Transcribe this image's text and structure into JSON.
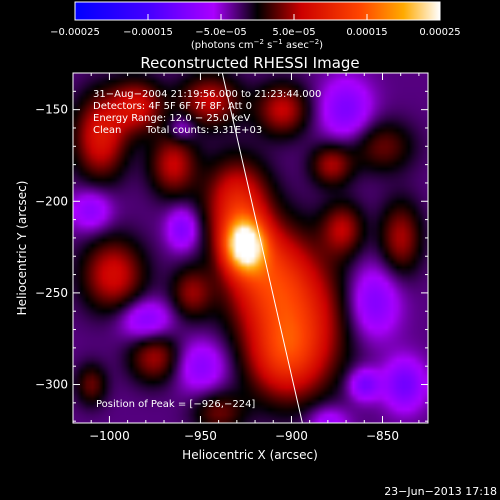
{
  "chart_data": {
    "type": "heatmap",
    "title": "Reconstructed RHESSI Image",
    "xlabel": "Heliocentric X (arcsec)",
    "ylabel": "Heliocentric Y (arcsec)",
    "xlim": [
      -1020,
      -825
    ],
    "ylim": [
      -321,
      -130
    ],
    "x_ticks": [
      -1000,
      -950,
      -900,
      -850
    ],
    "y_ticks": [
      -150,
      -200,
      -250,
      -300
    ],
    "x_tick_labels": [
      "−1000",
      "−950",
      "−900",
      "−850"
    ],
    "y_tick_labels": [
      "−150",
      "−200",
      "−250",
      "−300"
    ],
    "colorbar": {
      "range": [
        -0.00025,
        0.00025
      ],
      "tick_labels": [
        "−0.00025",
        "−0.00015",
        "−5.0e−05",
        "5.0e−05",
        "0.00015",
        "0.00025"
      ],
      "unit_label_main": "(photons cm",
      "unit_sup1": "−2",
      "unit_mid": " s",
      "unit_sup2": "−1",
      "unit_mid2": " asec",
      "unit_sup3": "−2",
      "unit_end": ")"
    },
    "annotations": {
      "time_range": "31−Aug−2004 21:19:56.000 to 21:23:44.000",
      "detectors": "Detectors: 4F 5F 6F 7F 8F, Att 0",
      "energy_range": "Energy Range: 12.0 − 25.0 keV",
      "method": "Clean",
      "total_counts": "Total counts: 3.31E+03",
      "peak": "Position of Peak = [−926,−224]"
    },
    "peak_position": [
      -926,
      -224
    ],
    "limb_line": [
      [
        -938,
        -130
      ],
      [
        -894,
        -321
      ]
    ],
    "sources": [
      {
        "x": -926,
        "y": -224,
        "sx": 8,
        "sy": 10,
        "amp": 0.00024
      },
      {
        "x": -930,
        "y": -200,
        "sx": 12,
        "sy": 16,
        "amp": 0.00012
      },
      {
        "x": -915,
        "y": -240,
        "sx": 16,
        "sy": 20,
        "amp": 0.00012
      },
      {
        "x": -895,
        "y": -265,
        "sx": 18,
        "sy": 26,
        "amp": 0.00011
      },
      {
        "x": -905,
        "y": -285,
        "sx": 14,
        "sy": 16,
        "amp": 9e-05
      },
      {
        "x": -1005,
        "y": -165,
        "sx": 10,
        "sy": 16,
        "amp": 0.00011
      },
      {
        "x": -985,
        "y": -148,
        "sx": 10,
        "sy": 10,
        "amp": 0.0001
      },
      {
        "x": -965,
        "y": -180,
        "sx": 9,
        "sy": 12,
        "amp": 9e-05
      },
      {
        "x": -998,
        "y": -240,
        "sx": 12,
        "sy": 14,
        "amp": 0.0001
      },
      {
        "x": -975,
        "y": -285,
        "sx": 10,
        "sy": 10,
        "amp": 8e-05
      },
      {
        "x": -955,
        "y": -250,
        "sx": 8,
        "sy": 10,
        "amp": 7e-05
      },
      {
        "x": -945,
        "y": -145,
        "sx": 12,
        "sy": 10,
        "amp": 9e-05
      },
      {
        "x": -905,
        "y": -150,
        "sx": 10,
        "sy": 10,
        "amp": 9e-05
      },
      {
        "x": -878,
        "y": -180,
        "sx": 8,
        "sy": 8,
        "amp": 8e-05
      },
      {
        "x": -872,
        "y": -215,
        "sx": 8,
        "sy": 10,
        "amp": 8e-05
      },
      {
        "x": -840,
        "y": -220,
        "sx": 8,
        "sy": 14,
        "amp": 8e-05
      },
      {
        "x": -850,
        "y": -170,
        "sx": 12,
        "sy": 10,
        "amp": 6e-05
      },
      {
        "x": -940,
        "y": -315,
        "sx": 10,
        "sy": 8,
        "amp": 6e-05
      },
      {
        "x": -1010,
        "y": -300,
        "sx": 6,
        "sy": 8,
        "amp": 6e-05
      },
      {
        "x": -960,
        "y": -215,
        "sx": 6,
        "sy": 8,
        "amp": -7e-05
      },
      {
        "x": -1010,
        "y": -205,
        "sx": 8,
        "sy": 8,
        "amp": -6e-05
      },
      {
        "x": -980,
        "y": -265,
        "sx": 10,
        "sy": 8,
        "amp": -7e-05
      },
      {
        "x": -950,
        "y": -290,
        "sx": 10,
        "sy": 10,
        "amp": -6e-05
      },
      {
        "x": -870,
        "y": -150,
        "sx": 10,
        "sy": 12,
        "amp": -7e-05
      },
      {
        "x": -855,
        "y": -255,
        "sx": 10,
        "sy": 14,
        "amp": -7e-05
      },
      {
        "x": -838,
        "y": -300,
        "sx": 8,
        "sy": 10,
        "amp": -8e-05
      },
      {
        "x": -860,
        "y": -300,
        "sx": 6,
        "sy": 6,
        "amp": -8e-05
      },
      {
        "x": -960,
        "y": -160,
        "sx": 5,
        "sy": 5,
        "amp": -5e-05
      },
      {
        "x": -880,
        "y": -320,
        "sx": 8,
        "sy": 6,
        "amp": -5e-05
      }
    ],
    "background_level": -3e-05,
    "grid": false
  },
  "footer": {
    "date": "23−Jun−2013 17:18"
  }
}
